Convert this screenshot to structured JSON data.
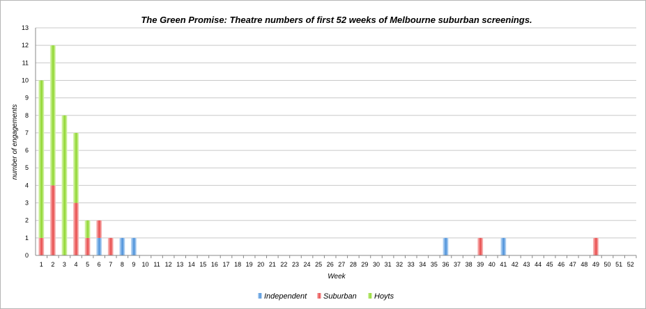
{
  "chart_data": {
    "type": "bar",
    "stacked": true,
    "title": "The Green Promise: Theatre numbers of first 52 weeks of Melbourne suburban screenings.",
    "xlabel": "Week",
    "ylabel": "number of engagements",
    "ylim": [
      0,
      13
    ],
    "yticks": [
      "0",
      "1",
      "2",
      "3",
      "4",
      "5",
      "6",
      "7",
      "8",
      "9",
      "10",
      "11",
      "12",
      "13"
    ],
    "grid": true,
    "legend_position": "bottom",
    "categories": [
      "1",
      "2",
      "3",
      "4",
      "5",
      "6",
      "7",
      "8",
      "9",
      "10",
      "11",
      "12",
      "13",
      "14",
      "15",
      "16",
      "17",
      "18",
      "19",
      "20",
      "21",
      "22",
      "23",
      "24",
      "25",
      "26",
      "27",
      "28",
      "29",
      "30",
      "31",
      "32",
      "33",
      "34",
      "35",
      "36",
      "37",
      "38",
      "39",
      "40",
      "41",
      "42",
      "43",
      "44",
      "45",
      "46",
      "47",
      "48",
      "49",
      "50",
      "51",
      "52"
    ],
    "series": [
      {
        "name": "Independent",
        "color": "#4a90d9",
        "values": [
          0,
          0,
          0,
          0,
          0,
          1,
          0,
          1,
          1,
          0,
          0,
          0,
          0,
          0,
          0,
          0,
          0,
          0,
          0,
          0,
          0,
          0,
          0,
          0,
          0,
          0,
          0,
          0,
          0,
          0,
          0,
          0,
          0,
          0,
          0,
          1,
          0,
          0,
          0,
          0,
          1,
          0,
          0,
          0,
          0,
          0,
          0,
          0,
          0,
          0,
          0,
          0
        ]
      },
      {
        "name": "Suburban",
        "color": "#e84a4a",
        "values": [
          1,
          4,
          0,
          3,
          1,
          1,
          1,
          0,
          0,
          0,
          0,
          0,
          0,
          0,
          0,
          0,
          0,
          0,
          0,
          0,
          0,
          0,
          0,
          0,
          0,
          0,
          0,
          0,
          0,
          0,
          0,
          0,
          0,
          0,
          0,
          0,
          0,
          0,
          1,
          0,
          0,
          0,
          0,
          0,
          0,
          0,
          0,
          0,
          1,
          0,
          0,
          0
        ]
      },
      {
        "name": "Hoyts",
        "color": "#8ed62e",
        "values": [
          9,
          8,
          8,
          4,
          1,
          0,
          0,
          0,
          0,
          0,
          0,
          0,
          0,
          0,
          0,
          0,
          0,
          0,
          0,
          0,
          0,
          0,
          0,
          0,
          0,
          0,
          0,
          0,
          0,
          0,
          0,
          0,
          0,
          0,
          0,
          0,
          0,
          0,
          0,
          0,
          0,
          0,
          0,
          0,
          0,
          0,
          0,
          0,
          0,
          0,
          0,
          0
        ]
      }
    ]
  }
}
